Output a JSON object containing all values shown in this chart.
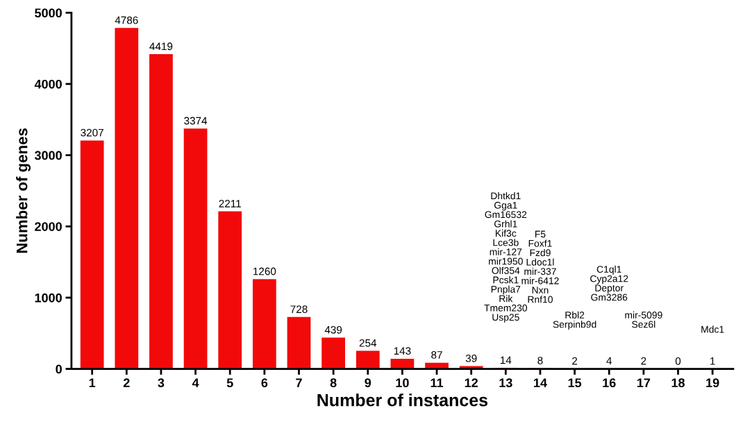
{
  "chart_data": {
    "type": "bar",
    "xlabel": "Number of instances",
    "ylabel": "Number of genes",
    "categories": [
      "1",
      "2",
      "3",
      "4",
      "5",
      "6",
      "7",
      "8",
      "9",
      "10",
      "11",
      "12",
      "13",
      "14",
      "15",
      "16",
      "17",
      "18",
      "19"
    ],
    "values": [
      3207,
      4786,
      4419,
      3374,
      2211,
      1260,
      728,
      439,
      254,
      143,
      87,
      39,
      14,
      8,
      2,
      4,
      2,
      0,
      1
    ],
    "color": "#f20a0a",
    "ylim": [
      0,
      5000
    ],
    "yticks": [
      0,
      1000,
      2000,
      3000,
      4000,
      5000
    ],
    "grid": false,
    "legend": false,
    "data_labels": true,
    "annotations": [
      "Dhtkd1\nGga1\nGm16532\nGrhl1\nKif3c\nLce3b\nmir-127\nmir1950\nOlf354\nPcsk1\nPnpla7\nRik\nTmem230\nUsp25",
      "F5\nFoxf1\nFzd9\nLdoc1l\nmir-337\nmir-6412\nNxn\nRnf10",
      "Rbl2\nSerpinb9d",
      "C1ql1\nCyp2a12\nDeptor\nGm3286",
      "mir-5099\nSez6l",
      "Mdc1"
    ]
  }
}
